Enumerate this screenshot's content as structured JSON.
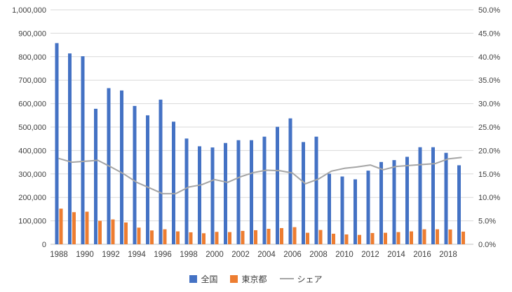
{
  "chart_data": {
    "type": "combo",
    "title": "",
    "categories": [
      1988,
      1989,
      1990,
      1991,
      1992,
      1993,
      1994,
      1995,
      1996,
      1997,
      1998,
      1999,
      2000,
      2001,
      2002,
      2003,
      2004,
      2005,
      2006,
      2007,
      2008,
      2009,
      2010,
      2011,
      2012,
      2013,
      2014,
      2015,
      2016,
      2017,
      2018,
      2019
    ],
    "series": [
      {
        "name": "全国",
        "type": "bar",
        "axis": "left",
        "color": "#4472C4",
        "values": [
          858000,
          814000,
          802000,
          578000,
          666000,
          656000,
          590000,
          550000,
          617000,
          523000,
          451000,
          418000,
          413000,
          432000,
          444000,
          444000,
          459000,
          501000,
          537000,
          436000,
          459000,
          301000,
          289000,
          277000,
          314000,
          351000,
          359000,
          373000,
          414000,
          414000,
          390000,
          337000
        ]
      },
      {
        "name": "東京都",
        "type": "bar",
        "axis": "left",
        "color": "#ED7D31",
        "values": [
          152000,
          137000,
          139000,
          100000,
          106000,
          93000,
          71000,
          59000,
          64000,
          55000,
          51000,
          47000,
          53000,
          52000,
          57000,
          60000,
          66000,
          69000,
          73000,
          49000,
          61000,
          45000,
          42000,
          40000,
          48000,
          49000,
          52000,
          55000,
          64000,
          64000,
          63000,
          54000
        ]
      },
      {
        "name": "シェア",
        "type": "line",
        "axis": "right",
        "color": "#A5A5A5",
        "values": [
          18.3,
          17.5,
          17.7,
          17.9,
          16.5,
          15.0,
          13.2,
          12.0,
          10.8,
          10.8,
          12.2,
          12.7,
          13.8,
          13.2,
          14.4,
          15.3,
          15.8,
          15.7,
          15.2,
          12.9,
          13.9,
          15.6,
          16.2,
          16.5,
          16.9,
          15.9,
          16.6,
          16.8,
          17.0,
          17.2,
          18.2,
          18.5
        ]
      }
    ],
    "axes": {
      "left": {
        "min": 0,
        "max": 1000000,
        "tick_interval": 100000,
        "tick_labels": [
          "1,000,000",
          "900,000",
          "800,000",
          "700,000",
          "600,000",
          "500,000",
          "400,000",
          "300,000",
          "200,000",
          "100,000",
          "0"
        ]
      },
      "right": {
        "min": 0,
        "max": 50,
        "tick_interval": 5,
        "tick_labels": [
          "50.0%",
          "45.0%",
          "40.0%",
          "35.0%",
          "30.0%",
          "25.0%",
          "20.0%",
          "15.0%",
          "10.0%",
          "5.0%",
          "0.0%"
        ]
      },
      "x": {
        "tick_labels": [
          "1988",
          "1990",
          "1992",
          "1994",
          "1996",
          "1998",
          "2000",
          "2002",
          "2004",
          "2006",
          "2008",
          "2010",
          "2012",
          "2014",
          "2016",
          "2018"
        ],
        "label_every_n_years": 2
      }
    },
    "grid": true,
    "legend_position": "bottom",
    "colors": {
      "gridline": "#D9D9D9",
      "axis_line": "#BFBFBF",
      "tick_text": "#404040",
      "background": "#FFFFFF"
    }
  }
}
